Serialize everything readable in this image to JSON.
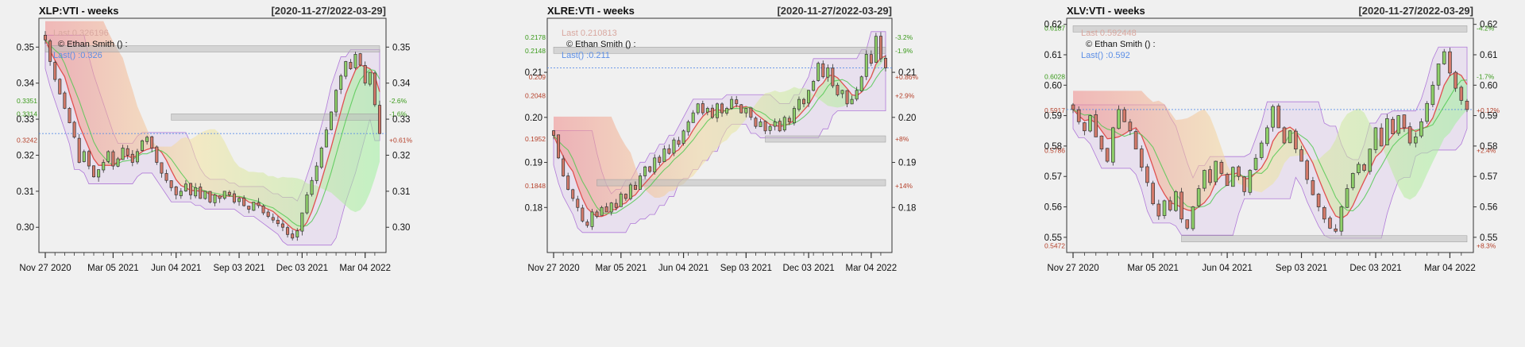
{
  "chart_data": [
    {
      "type": "candlestick",
      "title": "XLP:VTI - weeks",
      "date_range": "[2020-11-27/2022-03-29]",
      "ylim": [
        0.293,
        0.358
      ],
      "yticks": [
        0.3,
        0.31,
        0.32,
        0.33,
        0.34,
        0.35
      ],
      "ytick_labels": [
        "0.30",
        "0.31",
        "0.32",
        "0.33",
        "0.34",
        "0.35"
      ],
      "xtick_labels": [
        "Nov 27 2020",
        "Mar 05 2021",
        "Jun 04 2021",
        "Sep 03 2021",
        "Dec 03 2021",
        "Mar 04 2022"
      ],
      "xtick_weeks": [
        0,
        14,
        27,
        40,
        53,
        66
      ],
      "n_weeks": 70,
      "last_label": "Last 0.326196",
      "last_short": "Last() :0.326",
      "last_value": 0.326,
      "copyright": "© Ethan Smith () :",
      "hlines": [
        {
          "value": 0.3351,
          "label": "0.3351",
          "pct": "-2.6%",
          "color": "#3a9a1a"
        },
        {
          "value": 0.3314,
          "label": "0.3314",
          "pct": "-1.6%",
          "color": "#3a9a1a"
        },
        {
          "value": 0.3242,
          "label": "0.3242",
          "pct": "+0.61%",
          "color": "#b5402a"
        }
      ],
      "grey_bands": [
        {
          "from_week": 0,
          "to_week": 69,
          "value": 0.3495
        },
        {
          "from_week": 26,
          "to_week": 69,
          "value": 0.3306
        }
      ],
      "closes": [
        0.352,
        0.346,
        0.341,
        0.337,
        0.333,
        0.329,
        0.325,
        0.318,
        0.321,
        0.317,
        0.314,
        0.316,
        0.318,
        0.321,
        0.317,
        0.319,
        0.322,
        0.32,
        0.318,
        0.321,
        0.324,
        0.325,
        0.322,
        0.318,
        0.315,
        0.313,
        0.311,
        0.309,
        0.31,
        0.312,
        0.309,
        0.311,
        0.308,
        0.31,
        0.307,
        0.309,
        0.308,
        0.31,
        0.309,
        0.307,
        0.308,
        0.306,
        0.305,
        0.307,
        0.306,
        0.304,
        0.303,
        0.302,
        0.301,
        0.3,
        0.298,
        0.297,
        0.299,
        0.304,
        0.309,
        0.313,
        0.317,
        0.322,
        0.327,
        0.332,
        0.338,
        0.342,
        0.346,
        0.344,
        0.348,
        0.345,
        0.34,
        0.343,
        0.334,
        0.326
      ]
    },
    {
      "type": "candlestick",
      "title": "XLRE:VTI - weeks",
      "date_range": "[2020-11-27/2022-03-29]",
      "ylim": [
        0.17,
        0.222
      ],
      "yticks": [
        0.18,
        0.19,
        0.2,
        0.21
      ],
      "ytick_labels": [
        "0.18",
        "0.19",
        "0.20",
        "0.21"
      ],
      "xtick_labels": [
        "Nov 27 2020",
        "Mar 05 2021",
        "Jun 04 2021",
        "Sep 03 2021",
        "Dec 03 2021",
        "Mar 04 2022"
      ],
      "xtick_weeks": [
        0,
        14,
        27,
        40,
        53,
        66
      ],
      "n_weeks": 70,
      "last_label": "Last 0.210813",
      "last_short": "Last() :0.211",
      "last_value": 0.211,
      "copyright": "© Ethan Smith () :",
      "hlines": [
        {
          "value": 0.2178,
          "label": "0.2178",
          "pct": "-3.2%",
          "color": "#3a9a1a"
        },
        {
          "value": 0.2148,
          "label": "0.2148",
          "pct": "-1.9%",
          "color": "#3a9a1a"
        },
        {
          "value": 0.209,
          "label": "0.209",
          "pct": "+0.86%",
          "color": "#b5402a"
        },
        {
          "value": 0.2048,
          "label": "0.2048",
          "pct": "+2.9%",
          "color": "#b5402a"
        },
        {
          "value": 0.1952,
          "label": "0.1952",
          "pct": "+8%",
          "color": "#b5402a"
        },
        {
          "value": 0.1848,
          "label": "0.1848",
          "pct": "+14%",
          "color": "#b5402a"
        }
      ],
      "grey_bands": [
        {
          "from_week": 0,
          "to_week": 69,
          "value": 0.2149
        },
        {
          "from_week": 44,
          "to_week": 69,
          "value": 0.1952
        },
        {
          "from_week": 9,
          "to_week": 69,
          "value": 0.1855
        }
      ],
      "closes": [
        0.196,
        0.191,
        0.187,
        0.184,
        0.182,
        0.18,
        0.177,
        0.176,
        0.179,
        0.178,
        0.18,
        0.179,
        0.181,
        0.18,
        0.183,
        0.182,
        0.185,
        0.184,
        0.187,
        0.189,
        0.188,
        0.191,
        0.19,
        0.193,
        0.192,
        0.195,
        0.194,
        0.197,
        0.199,
        0.201,
        0.203,
        0.201,
        0.202,
        0.2,
        0.203,
        0.201,
        0.202,
        0.204,
        0.203,
        0.201,
        0.202,
        0.2,
        0.198,
        0.199,
        0.197,
        0.198,
        0.199,
        0.197,
        0.2,
        0.199,
        0.202,
        0.204,
        0.203,
        0.206,
        0.208,
        0.212,
        0.209,
        0.211,
        0.207,
        0.205,
        0.206,
        0.203,
        0.204,
        0.206,
        0.209,
        0.214,
        0.212,
        0.218,
        0.213,
        0.211
      ]
    },
    {
      "type": "candlestick",
      "title": "XLV:VTI - weeks",
      "date_range": "[2020-11-27/2022-03-29]",
      "ylim": [
        0.545,
        0.622
      ],
      "yticks": [
        0.55,
        0.56,
        0.57,
        0.58,
        0.59,
        0.6,
        0.61,
        0.62
      ],
      "ytick_labels": [
        "0.55",
        "0.56",
        "0.57",
        "0.58",
        "0.59",
        "0.60",
        "0.61",
        "0.62"
      ],
      "xtick_labels": [
        "Nov 27 2020",
        "Mar 05 2021",
        "Jun 04 2021",
        "Sep 03 2021",
        "Dec 03 2021",
        "Mar 04 2022"
      ],
      "xtick_weeks": [
        0,
        14,
        27,
        40,
        53,
        66
      ],
      "n_weeks": 70,
      "last_label": "Last 0.592448",
      "last_short": "Last() :0.592",
      "last_value": 0.592,
      "copyright": "© Ethan Smith () :",
      "hlines": [
        {
          "value": 0.6187,
          "label": "0.6187",
          "pct": "-4.2%",
          "color": "#3a9a1a"
        },
        {
          "value": 0.6028,
          "label": "0.6028",
          "pct": "-1.7%",
          "color": "#3a9a1a"
        },
        {
          "value": 0.5917,
          "label": "0.5917",
          "pct": "+0.12%",
          "color": "#b5402a"
        },
        {
          "value": 0.5786,
          "label": "0.5786",
          "pct": "+2.4%",
          "color": "#b5402a"
        },
        {
          "value": 0.5472,
          "label": "0.5472",
          "pct": "+8.3%",
          "color": "#b5402a"
        }
      ],
      "grey_bands": [
        {
          "from_week": 0,
          "to_week": 69,
          "value": 0.6185
        },
        {
          "from_week": 19,
          "to_week": 69,
          "value": 0.5495
        }
      ],
      "closes": [
        0.592,
        0.588,
        0.585,
        0.59,
        0.583,
        0.579,
        0.575,
        0.586,
        0.592,
        0.588,
        0.585,
        0.579,
        0.573,
        0.568,
        0.561,
        0.557,
        0.562,
        0.559,
        0.565,
        0.556,
        0.553,
        0.56,
        0.566,
        0.572,
        0.568,
        0.575,
        0.571,
        0.567,
        0.573,
        0.57,
        0.565,
        0.572,
        0.576,
        0.581,
        0.586,
        0.593,
        0.586,
        0.581,
        0.585,
        0.579,
        0.575,
        0.569,
        0.564,
        0.56,
        0.556,
        0.553,
        0.552,
        0.56,
        0.566,
        0.571,
        0.574,
        0.572,
        0.579,
        0.586,
        0.58,
        0.589,
        0.584,
        0.59,
        0.586,
        0.581,
        0.583,
        0.588,
        0.594,
        0.6,
        0.607,
        0.611,
        0.604,
        0.599,
        0.595,
        0.592
      ]
    }
  ]
}
